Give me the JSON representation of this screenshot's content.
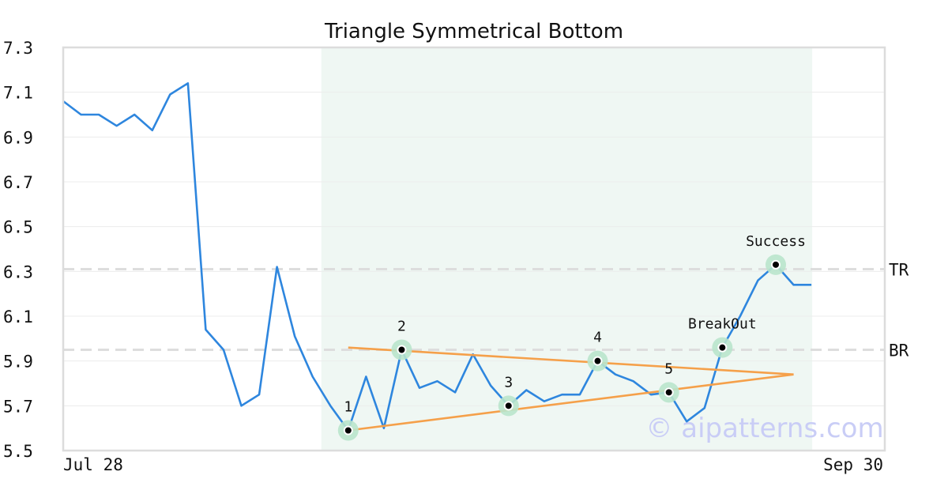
{
  "chart_data": {
    "type": "line",
    "title": "Triangle Symmetrical Bottom",
    "watermark": "© aipatterns.com",
    "ylim": [
      5.5,
      7.3
    ],
    "y_ticks": [
      5.5,
      5.7,
      5.9,
      6.1,
      6.3,
      6.5,
      6.7,
      6.9,
      7.1,
      7.3
    ],
    "y_tick_labels": [
      "5.5",
      "5.7",
      "5.9",
      "6.1",
      "6.3",
      "6.5",
      "6.7",
      "6.9",
      "7.1",
      "7.3"
    ],
    "x_tick_labels": [
      {
        "label": "Jul 28",
        "x": 0
      },
      {
        "label": "Sep 30",
        "x": 46
      }
    ],
    "grid": true,
    "colors": {
      "price": "#2e86de",
      "trendline": "#f5a04a",
      "pattern_region": "#eff7f3",
      "marker_halo": "#b9e4cc",
      "level_line": "#dddddd"
    },
    "series": [
      {
        "values": [
          7.06,
          7.0,
          7.0,
          6.95,
          7.0,
          6.93,
          7.09,
          7.14,
          6.04,
          5.95,
          5.7,
          5.75,
          6.32,
          6.01,
          5.83,
          5.7,
          5.59,
          5.83,
          5.6,
          5.95,
          5.78,
          5.81,
          5.76,
          5.93,
          5.79,
          5.7,
          5.77,
          5.72,
          5.75,
          5.75,
          5.9,
          5.84,
          5.81,
          5.75,
          5.76,
          5.63,
          5.69,
          5.96,
          6.1,
          6.26,
          6.33,
          6.24,
          6.24
        ]
      }
    ],
    "pattern_region": {
      "x_start": 14,
      "x_end": 42
    },
    "trendlines": [
      {
        "from": {
          "x": 16,
          "y": 5.96
        },
        "to": {
          "x": 41,
          "y": 5.84
        }
      },
      {
        "from": {
          "x": 16,
          "y": 5.59
        },
        "to": {
          "x": 41,
          "y": 5.84
        }
      }
    ],
    "levels": [
      {
        "label": "TR",
        "y": 6.31
      },
      {
        "label": "BR",
        "y": 5.95
      }
    ],
    "markers": [
      {
        "label": "1",
        "x": 16,
        "y": 5.59,
        "label_pos": "above"
      },
      {
        "label": "2",
        "x": 19,
        "y": 5.95,
        "label_pos": "above"
      },
      {
        "label": "3",
        "x": 25,
        "y": 5.7,
        "label_pos": "above"
      },
      {
        "label": "4",
        "x": 30,
        "y": 5.9,
        "label_pos": "above"
      },
      {
        "label": "5",
        "x": 34,
        "y": 5.76,
        "label_pos": "above"
      },
      {
        "label": "BreakOut",
        "x": 37,
        "y": 5.96,
        "label_pos": "above"
      },
      {
        "label": "Success",
        "x": 40,
        "y": 6.33,
        "label_pos": "above"
      }
    ]
  }
}
